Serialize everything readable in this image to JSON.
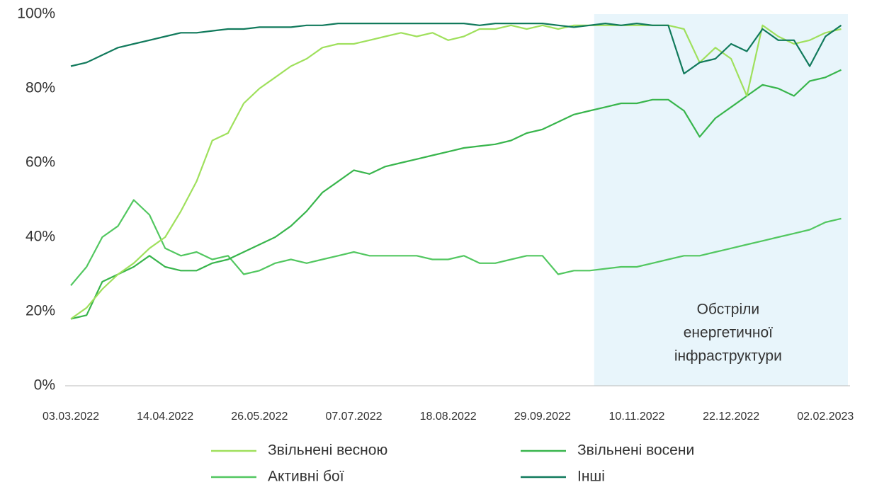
{
  "chart_data": {
    "type": "line",
    "x": [
      "03.03.2022",
      "10.03.2022",
      "17.03.2022",
      "24.03.2022",
      "31.03.2022",
      "07.04.2022",
      "14.04.2022",
      "21.04.2022",
      "28.04.2022",
      "05.05.2022",
      "12.05.2022",
      "19.05.2022",
      "26.05.2022",
      "02.06.2022",
      "09.06.2022",
      "16.06.2022",
      "23.06.2022",
      "30.06.2022",
      "07.07.2022",
      "14.07.2022",
      "21.07.2022",
      "28.07.2022",
      "04.08.2022",
      "11.08.2022",
      "18.08.2022",
      "25.08.2022",
      "01.09.2022",
      "08.09.2022",
      "15.09.2022",
      "22.09.2022",
      "29.09.2022",
      "06.10.2022",
      "13.10.2022",
      "20.10.2022",
      "27.10.2022",
      "03.11.2022",
      "10.11.2022",
      "17.11.2022",
      "24.11.2022",
      "01.12.2022",
      "08.12.2022",
      "15.12.2022",
      "22.12.2022",
      "29.12.2022",
      "05.01.2023",
      "12.01.2023",
      "19.01.2023",
      "26.01.2023",
      "02.02.2023",
      "09.02.2023"
    ],
    "series": [
      {
        "name": "Звільнені весною",
        "color": "#9fe05c",
        "values": [
          18,
          21,
          26,
          30,
          33,
          37,
          40,
          47,
          55,
          66,
          68,
          76,
          80,
          83,
          86,
          88,
          91,
          92,
          92,
          93,
          94,
          95,
          94,
          95,
          93,
          94,
          96,
          96,
          97,
          96,
          97,
          96,
          97,
          97,
          97,
          97,
          97,
          97,
          97,
          96,
          87,
          91,
          88,
          78,
          97,
          94,
          92,
          93,
          95,
          96
        ]
      },
      {
        "name": "Звільнені восени",
        "color": "#38b54c",
        "values": [
          18,
          19,
          28,
          30,
          32,
          35,
          32,
          31,
          31,
          33,
          34,
          36,
          38,
          40,
          43,
          47,
          52,
          55,
          58,
          57,
          59,
          60,
          61,
          62,
          63,
          64,
          64.5,
          65,
          66,
          68,
          69,
          71,
          73,
          74,
          75,
          76,
          76,
          77,
          77,
          74,
          67,
          72,
          75,
          78,
          81,
          80,
          78,
          82,
          83,
          85
        ]
      },
      {
        "name": "Активні бої",
        "color": "#52c760",
        "values": [
          27,
          32,
          40,
          43,
          50,
          46,
          37,
          35,
          36,
          34,
          35,
          30,
          31,
          33,
          34,
          33,
          34,
          35,
          36,
          35,
          35,
          35,
          35,
          34,
          34,
          35,
          33,
          33,
          34,
          35,
          35,
          30,
          31,
          31,
          31.5,
          32,
          32,
          33,
          34,
          35,
          35,
          36,
          37,
          38,
          39,
          40,
          41,
          42,
          44,
          45
        ]
      },
      {
        "name": "Інші",
        "color": "#117a5c",
        "values": [
          86,
          87,
          89,
          91,
          92,
          93,
          94,
          95,
          95,
          95.5,
          96,
          96,
          96.5,
          96.5,
          96.5,
          97,
          97,
          97.5,
          97.5,
          97.5,
          97.5,
          97.5,
          97.5,
          97.5,
          97.5,
          97.5,
          97,
          97.5,
          97.5,
          97.5,
          97.5,
          97,
          96.5,
          97,
          97.5,
          97,
          97.5,
          97,
          97,
          84,
          87,
          88,
          92,
          90,
          96,
          93,
          93,
          86,
          94,
          97
        ]
      }
    ],
    "xlim": [
      "03.03.2022",
      "12.02.2023"
    ],
    "xticks": [
      "03.03.2022",
      "14.04.2022",
      "26.05.2022",
      "07.07.2022",
      "18.08.2022",
      "29.09.2022",
      "10.11.2022",
      "22.12.2022",
      "02.02.2023"
    ],
    "ylim": [
      0,
      100
    ],
    "yticks": [
      {
        "value": 0,
        "label": "0%"
      },
      {
        "value": 20,
        "label": "20%"
      },
      {
        "value": 40,
        "label": "40%"
      },
      {
        "value": 60,
        "label": "60%"
      },
      {
        "value": 80,
        "label": "80%"
      },
      {
        "value": 100,
        "label": "100%"
      }
    ],
    "shaded_range": {
      "x": [
        "22.10.2022",
        "12.02.2023"
      ],
      "color": "#e8f5fb",
      "label": [
        "Обстріли",
        "енергетичної",
        "інфраструктури"
      ]
    }
  }
}
